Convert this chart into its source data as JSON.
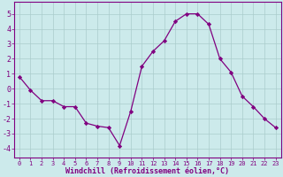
{
  "x": [
    0,
    1,
    2,
    3,
    4,
    5,
    6,
    7,
    8,
    9,
    10,
    11,
    12,
    13,
    14,
    15,
    16,
    17,
    18,
    19,
    20,
    21,
    22,
    23
  ],
  "y": [
    0.8,
    -0.1,
    -0.8,
    -0.8,
    -1.2,
    -1.2,
    -2.3,
    -2.5,
    -2.6,
    -3.8,
    -1.5,
    1.5,
    2.5,
    3.2,
    4.5,
    5.0,
    5.0,
    4.3,
    2.0,
    1.1,
    -0.5,
    -1.2,
    -2.0,
    -2.6
  ],
  "line_color": "#800080",
  "marker": "D",
  "marker_size": 2.2,
  "bg_color": "#cceaeb",
  "grid_color": "#aacccc",
  "xlabel": "Windchill (Refroidissement éolien,°C)",
  "xlim": [
    -0.5,
    23.5
  ],
  "ylim": [
    -4.6,
    5.8
  ],
  "yticks": [
    -4,
    -3,
    -2,
    -1,
    0,
    1,
    2,
    3,
    4,
    5
  ],
  "xticks": [
    0,
    1,
    2,
    3,
    4,
    5,
    6,
    7,
    8,
    9,
    10,
    11,
    12,
    13,
    14,
    15,
    16,
    17,
    18,
    19,
    20,
    21,
    22,
    23
  ],
  "tick_color": "#800080",
  "label_color": "#800080",
  "axis_color": "#800080",
  "xlabel_fontsize": 6.0,
  "xtick_fontsize": 5.0,
  "ytick_fontsize": 6.0
}
